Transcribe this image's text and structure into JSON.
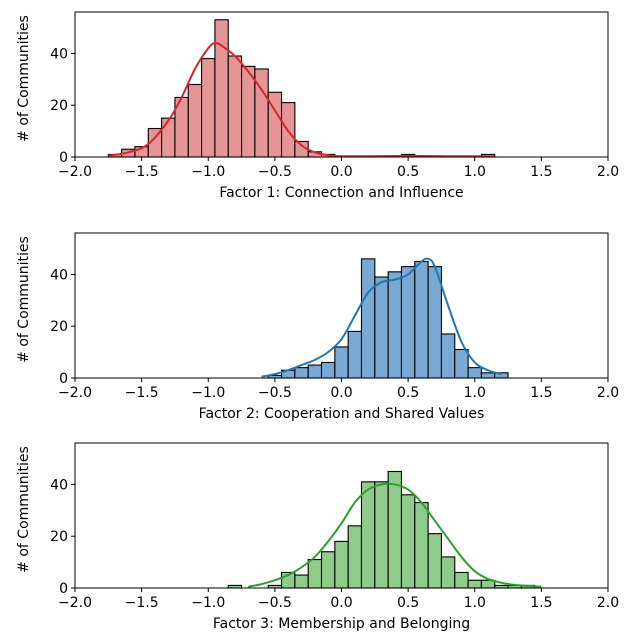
{
  "chart_data": [
    {
      "type": "bar",
      "subtype": "histogram",
      "xlabel": "Factor 1: Connection and Influence",
      "ylabel": "# of Communities",
      "xlim": [
        -2.0,
        2.0
      ],
      "ylim": [
        0,
        56
      ],
      "xticks": [
        "−2.0",
        "−1.5",
        "−1.0",
        "−0.5",
        "0.0",
        "0.5",
        "1.0",
        "1.5",
        "2.0"
      ],
      "yticks": [
        "0",
        "20",
        "40"
      ],
      "bin_width": 0.1,
      "bin_starts": [
        -1.75,
        -1.65,
        -1.55,
        -1.45,
        -1.35,
        -1.25,
        -1.15,
        -1.05,
        -0.95,
        -0.85,
        -0.75,
        -0.65,
        -0.55,
        -0.45,
        -0.35,
        -0.25,
        -0.15,
        -0.05,
        0.05,
        0.15,
        0.25,
        0.35,
        0.45,
        0.55,
        0.65,
        0.75,
        0.85,
        0.95,
        1.05
      ],
      "values": [
        1,
        3,
        4,
        11,
        15,
        23,
        28,
        38,
        53,
        39,
        35,
        34,
        25,
        21,
        6,
        2,
        1,
        0,
        0,
        0,
        0,
        0,
        1,
        0,
        0,
        0,
        0,
        0,
        1
      ],
      "kde": {
        "x": [
          -1.75,
          -1.6,
          -1.45,
          -1.3,
          -1.2,
          -1.1,
          -1.0,
          -0.95,
          -0.9,
          -0.8,
          -0.7,
          -0.6,
          -0.5,
          -0.4,
          -0.3,
          -0.2,
          -0.1,
          0.0,
          0.2,
          0.4,
          0.6,
          0.8,
          1.0,
          1.15
        ],
        "y": [
          0.5,
          1.8,
          5,
          14,
          23,
          34,
          42,
          44,
          43,
          39,
          33,
          26,
          18,
          10,
          4.5,
          1.8,
          0.7,
          0.3,
          0.3,
          0.4,
          0.4,
          0.3,
          0.3,
          0.2
        ]
      },
      "fill_color": "#e69596",
      "line_color": "#d62728"
    },
    {
      "type": "bar",
      "subtype": "histogram",
      "xlabel": "Factor 2: Cooperation and Shared Values",
      "ylabel": "# of Communities",
      "xlim": [
        -2.0,
        2.0
      ],
      "ylim": [
        0,
        56
      ],
      "xticks": [
        "−2.0",
        "−1.5",
        "−1.0",
        "−0.5",
        "0.0",
        "0.5",
        "1.0",
        "1.5",
        "2.0"
      ],
      "yticks": [
        "0",
        "20",
        "40"
      ],
      "bin_width": 0.1,
      "bin_starts": [
        -0.55,
        -0.45,
        -0.35,
        -0.25,
        -0.15,
        -0.05,
        0.05,
        0.15,
        0.25,
        0.35,
        0.45,
        0.55,
        0.65,
        0.75,
        0.85,
        0.95,
        1.05,
        1.15
      ],
      "values": [
        1,
        3,
        4,
        5,
        6,
        12,
        18,
        46,
        39,
        41,
        43,
        45,
        43,
        17,
        11,
        4,
        2,
        2
      ],
      "kde": {
        "x": [
          -0.6,
          -0.5,
          -0.4,
          -0.3,
          -0.2,
          -0.1,
          0.0,
          0.1,
          0.2,
          0.3,
          0.4,
          0.5,
          0.6,
          0.65,
          0.7,
          0.8,
          0.9,
          1.0,
          1.1,
          1.2
        ],
        "y": [
          0.5,
          1.5,
          3,
          5,
          7,
          10,
          15,
          24,
          33,
          37,
          38,
          40,
          45,
          46,
          43,
          28,
          14,
          6,
          3,
          1.5
        ]
      },
      "fill_color": "#7aaad3",
      "line_color": "#1f77b4"
    },
    {
      "type": "bar",
      "subtype": "histogram",
      "xlabel": "Factor 3: Membership and Belonging",
      "ylabel": "# of Communities",
      "xlim": [
        -2.0,
        2.0
      ],
      "ylim": [
        0,
        56
      ],
      "xticks": [
        "−2.0",
        "−1.5",
        "−1.0",
        "−0.5",
        "0.0",
        "0.5",
        "1.0",
        "1.5",
        "2.0"
      ],
      "yticks": [
        "0",
        "20",
        "40"
      ],
      "bin_width": 0.1,
      "bin_starts": [
        -0.85,
        -0.75,
        -0.65,
        -0.55,
        -0.45,
        -0.35,
        -0.25,
        -0.15,
        -0.05,
        0.05,
        0.15,
        0.25,
        0.35,
        0.45,
        0.55,
        0.65,
        0.75,
        0.85,
        0.95,
        1.05,
        1.15,
        1.25,
        1.35
      ],
      "values": [
        1,
        0,
        0,
        1,
        6,
        5,
        11,
        14,
        18,
        24,
        41,
        41,
        45,
        36,
        33,
        21,
        12,
        6,
        3,
        3,
        1,
        1,
        1
      ],
      "kde": {
        "x": [
          -0.7,
          -0.6,
          -0.5,
          -0.4,
          -0.3,
          -0.2,
          -0.1,
          0.0,
          0.1,
          0.2,
          0.3,
          0.4,
          0.5,
          0.6,
          0.7,
          0.8,
          0.9,
          1.0,
          1.1,
          1.2,
          1.3,
          1.4,
          1.5
        ],
        "y": [
          0.5,
          1.5,
          3,
          5,
          8,
          12,
          18,
          25,
          33,
          38,
          40,
          40,
          38,
          33,
          26,
          19,
          12,
          6.5,
          3.5,
          2,
          1.2,
          0.8,
          0.5
        ]
      },
      "fill_color": "#8fcb8a",
      "line_color": "#2ca02c"
    }
  ]
}
